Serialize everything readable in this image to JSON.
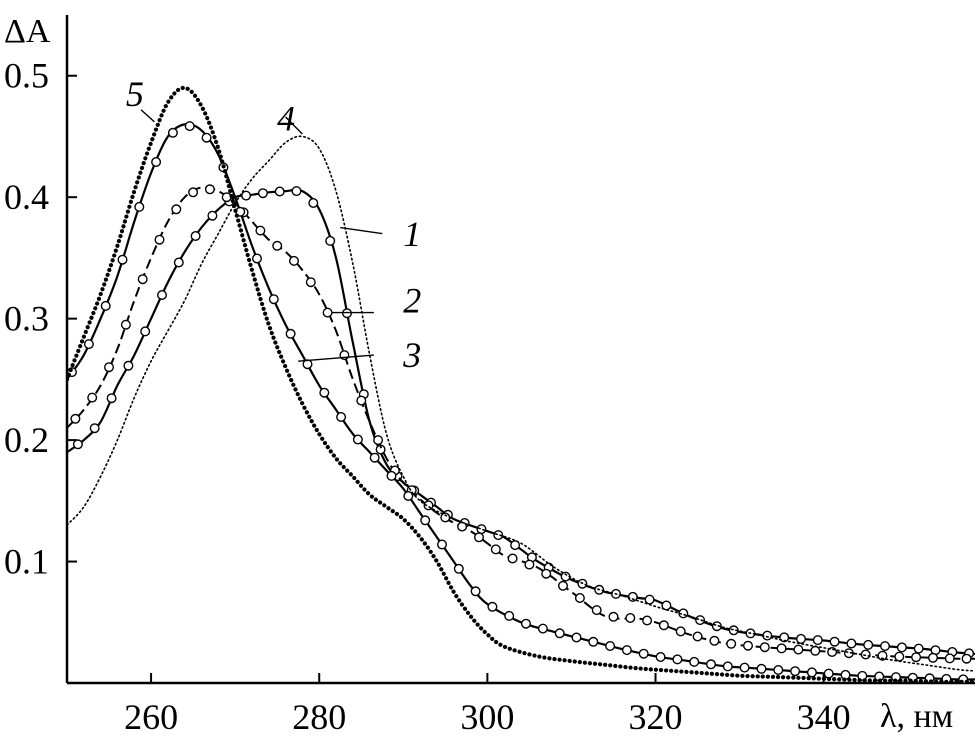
{
  "chart_data": {
    "type": "line",
    "ylabel": "ΔA",
    "xlabel": "λ, нм",
    "xlim": [
      250,
      358
    ],
    "ylim": [
      0,
      0.55
    ],
    "x_ticks": [
      260,
      280,
      300,
      320,
      340
    ],
    "x_tick_labels": [
      "260",
      "280",
      "300",
      "320",
      "340"
    ],
    "y_ticks": [
      0.1,
      0.2,
      0.3,
      0.4,
      0.5
    ],
    "y_tick_labels": [
      "0.1",
      "0.2",
      "0.3",
      "0.4",
      "0.5"
    ],
    "grid": false,
    "series": [
      {
        "name": "1",
        "style": "solid-circles",
        "points": [
          [
            250,
            0.19
          ],
          [
            252,
            0.2
          ],
          [
            254,
            0.215
          ],
          [
            256,
            0.245
          ],
          [
            258,
            0.27
          ],
          [
            260,
            0.3
          ],
          [
            262,
            0.33
          ],
          [
            264,
            0.355
          ],
          [
            266,
            0.375
          ],
          [
            268,
            0.39
          ],
          [
            270,
            0.4
          ],
          [
            272,
            0.402
          ],
          [
            274,
            0.404
          ],
          [
            276,
            0.405
          ],
          [
            278,
            0.405
          ],
          [
            280,
            0.39
          ],
          [
            282,
            0.35
          ],
          [
            284,
            0.28
          ],
          [
            286,
            0.215
          ],
          [
            288,
            0.18
          ],
          [
            290,
            0.165
          ],
          [
            292,
            0.155
          ],
          [
            294,
            0.145
          ],
          [
            296,
            0.135
          ],
          [
            300,
            0.125
          ],
          [
            302,
            0.12
          ],
          [
            304,
            0.11
          ],
          [
            306,
            0.1
          ],
          [
            310,
            0.085
          ],
          [
            314,
            0.075
          ],
          [
            318,
            0.07
          ],
          [
            320,
            0.068
          ],
          [
            324,
            0.055
          ],
          [
            328,
            0.045
          ],
          [
            332,
            0.04
          ],
          [
            336,
            0.037
          ],
          [
            340,
            0.035
          ],
          [
            344,
            0.032
          ],
          [
            348,
            0.03
          ],
          [
            352,
            0.028
          ],
          [
            356,
            0.025
          ],
          [
            358,
            0.024
          ]
        ]
      },
      {
        "name": "2",
        "style": "dashed-circles",
        "points": [
          [
            250,
            0.21
          ],
          [
            252,
            0.225
          ],
          [
            254,
            0.245
          ],
          [
            256,
            0.275
          ],
          [
            258,
            0.315
          ],
          [
            260,
            0.35
          ],
          [
            262,
            0.38
          ],
          [
            264,
            0.4
          ],
          [
            266,
            0.408
          ],
          [
            268,
            0.405
          ],
          [
            270,
            0.395
          ],
          [
            272,
            0.38
          ],
          [
            274,
            0.365
          ],
          [
            276,
            0.355
          ],
          [
            278,
            0.34
          ],
          [
            280,
            0.32
          ],
          [
            282,
            0.29
          ],
          [
            284,
            0.25
          ],
          [
            286,
            0.215
          ],
          [
            288,
            0.185
          ],
          [
            290,
            0.165
          ],
          [
            294,
            0.14
          ],
          [
            298,
            0.125
          ],
          [
            300,
            0.115
          ],
          [
            302,
            0.105
          ],
          [
            306,
            0.095
          ],
          [
            310,
            0.075
          ],
          [
            314,
            0.055
          ],
          [
            318,
            0.053
          ],
          [
            320,
            0.05
          ],
          [
            324,
            0.04
          ],
          [
            328,
            0.033
          ],
          [
            332,
            0.03
          ],
          [
            336,
            0.028
          ],
          [
            340,
            0.026
          ],
          [
            344,
            0.024
          ],
          [
            348,
            0.022
          ],
          [
            352,
            0.021
          ],
          [
            356,
            0.02
          ],
          [
            358,
            0.02
          ]
        ]
      },
      {
        "name": "3",
        "style": "solid-circles",
        "points": [
          [
            250,
            0.25
          ],
          [
            252,
            0.27
          ],
          [
            254,
            0.3
          ],
          [
            256,
            0.335
          ],
          [
            258,
            0.38
          ],
          [
            260,
            0.42
          ],
          [
            262,
            0.45
          ],
          [
            264,
            0.46
          ],
          [
            266,
            0.455
          ],
          [
            268,
            0.435
          ],
          [
            270,
            0.4
          ],
          [
            272,
            0.36
          ],
          [
            274,
            0.325
          ],
          [
            276,
            0.295
          ],
          [
            278,
            0.27
          ],
          [
            280,
            0.245
          ],
          [
            282,
            0.225
          ],
          [
            284,
            0.205
          ],
          [
            286,
            0.19
          ],
          [
            288,
            0.175
          ],
          [
            290,
            0.16
          ],
          [
            292,
            0.14
          ],
          [
            294,
            0.12
          ],
          [
            296,
            0.1
          ],
          [
            298,
            0.08
          ],
          [
            300,
            0.065
          ],
          [
            304,
            0.05
          ],
          [
            308,
            0.042
          ],
          [
            312,
            0.035
          ],
          [
            316,
            0.028
          ],
          [
            320,
            0.022
          ],
          [
            324,
            0.018
          ],
          [
            328,
            0.014
          ],
          [
            332,
            0.012
          ],
          [
            336,
            0.01
          ],
          [
            340,
            0.008
          ],
          [
            344,
            0.006
          ],
          [
            348,
            0.005
          ],
          [
            352,
            0.004
          ],
          [
            356,
            0.003
          ],
          [
            358,
            0.003
          ]
        ]
      },
      {
        "name": "4",
        "style": "dotted-thin",
        "points": [
          [
            250,
            0.13
          ],
          [
            252,
            0.145
          ],
          [
            254,
            0.17
          ],
          [
            256,
            0.2
          ],
          [
            258,
            0.235
          ],
          [
            260,
            0.265
          ],
          [
            262,
            0.29
          ],
          [
            264,
            0.315
          ],
          [
            266,
            0.345
          ],
          [
            268,
            0.37
          ],
          [
            270,
            0.395
          ],
          [
            272,
            0.415
          ],
          [
            274,
            0.43
          ],
          [
            276,
            0.445
          ],
          [
            278,
            0.45
          ],
          [
            280,
            0.44
          ],
          [
            282,
            0.405
          ],
          [
            284,
            0.345
          ],
          [
            286,
            0.27
          ],
          [
            288,
            0.205
          ],
          [
            290,
            0.17
          ],
          [
            292,
            0.15
          ],
          [
            296,
            0.135
          ],
          [
            300,
            0.125
          ],
          [
            304,
            0.115
          ],
          [
            308,
            0.095
          ],
          [
            312,
            0.08
          ],
          [
            316,
            0.072
          ],
          [
            320,
            0.063
          ],
          [
            324,
            0.055
          ],
          [
            328,
            0.046
          ],
          [
            332,
            0.04
          ],
          [
            336,
            0.034
          ],
          [
            340,
            0.029
          ],
          [
            344,
            0.024
          ],
          [
            348,
            0.019
          ],
          [
            352,
            0.015
          ],
          [
            356,
            0.011
          ],
          [
            358,
            0.01
          ]
        ]
      },
      {
        "name": "5",
        "style": "dotted-bold",
        "points": [
          [
            250,
            0.25
          ],
          [
            252,
            0.285
          ],
          [
            254,
            0.32
          ],
          [
            256,
            0.36
          ],
          [
            258,
            0.405
          ],
          [
            260,
            0.445
          ],
          [
            262,
            0.478
          ],
          [
            264,
            0.49
          ],
          [
            266,
            0.475
          ],
          [
            268,
            0.44
          ],
          [
            270,
            0.39
          ],
          [
            272,
            0.34
          ],
          [
            274,
            0.295
          ],
          [
            276,
            0.26
          ],
          [
            278,
            0.23
          ],
          [
            280,
            0.205
          ],
          [
            282,
            0.185
          ],
          [
            284,
            0.17
          ],
          [
            286,
            0.155
          ],
          [
            288,
            0.145
          ],
          [
            290,
            0.135
          ],
          [
            292,
            0.12
          ],
          [
            294,
            0.1
          ],
          [
            296,
            0.075
          ],
          [
            298,
            0.055
          ],
          [
            300,
            0.04
          ],
          [
            302,
            0.03
          ],
          [
            306,
            0.022
          ],
          [
            310,
            0.018
          ],
          [
            314,
            0.015
          ],
          [
            318,
            0.012
          ],
          [
            322,
            0.01
          ],
          [
            326,
            0.008
          ],
          [
            330,
            0.006
          ],
          [
            334,
            0.005
          ],
          [
            338,
            0.004
          ],
          [
            342,
            0.003
          ],
          [
            346,
            0.002
          ],
          [
            350,
            0.002
          ],
          [
            354,
            0.001
          ],
          [
            358,
            0.001
          ]
        ]
      }
    ],
    "curve_labels": [
      {
        "text": "1",
        "x": 290,
        "y": 0.36
      },
      {
        "text": "2",
        "x": 290,
        "y": 0.305
      },
      {
        "text": "3",
        "x": 290,
        "y": 0.26
      },
      {
        "text": "4",
        "x": 275,
        "y": 0.455
      },
      {
        "text": "5",
        "x": 257,
        "y": 0.475
      }
    ],
    "leader_lines": [
      {
        "from": [
          282.5,
          0.375
        ],
        "to": [
          287.5,
          0.37
        ]
      },
      {
        "from": [
          281.5,
          0.305
        ],
        "to": [
          286.5,
          0.305
        ]
      },
      {
        "from": [
          277.5,
          0.265
        ],
        "to": [
          286.5,
          0.27
        ]
      },
      {
        "from": [
          276,
          0.466
        ],
        "to": [
          278,
          0.452
        ]
      },
      {
        "from": [
          258.8,
          0.472
        ],
        "to": [
          260.4,
          0.462
        ]
      }
    ]
  }
}
